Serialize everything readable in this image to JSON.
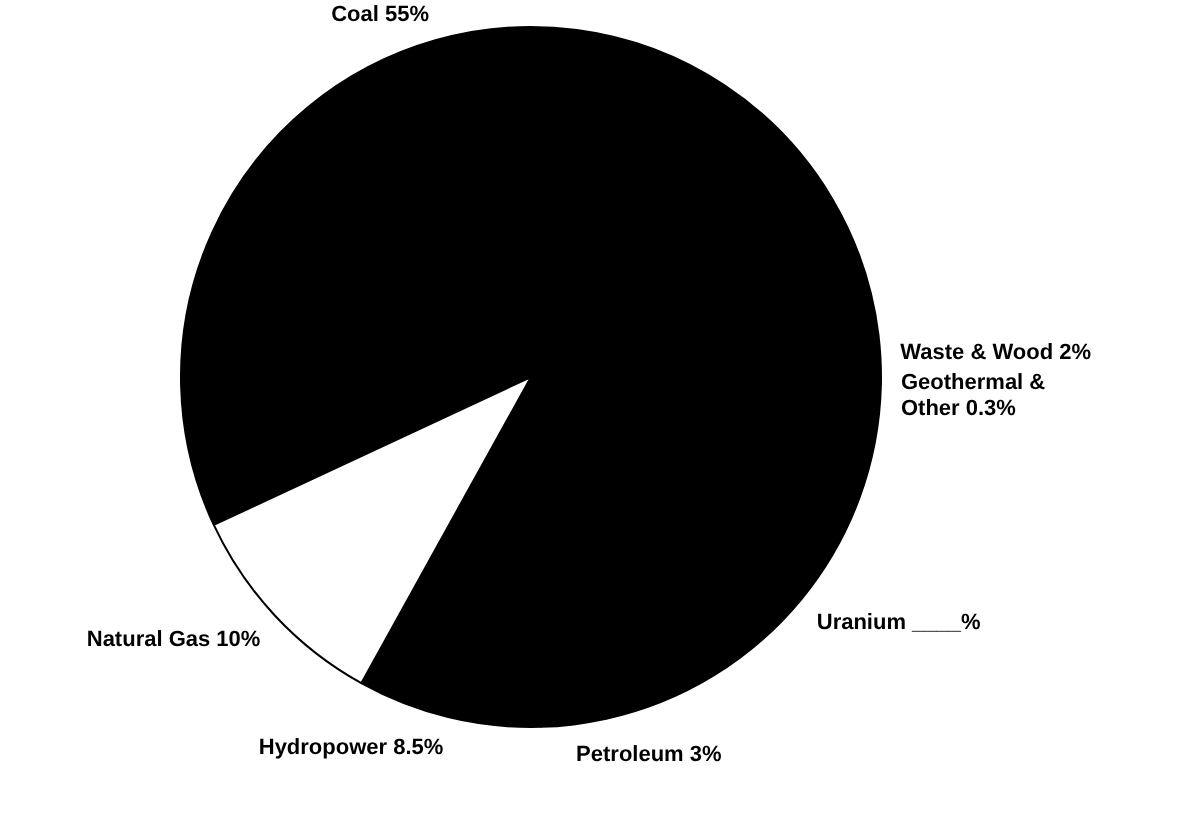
{
  "chart_data": {
    "type": "pie",
    "categories": [
      "Coal",
      "Waste & Wood",
      "Geothermal & Other",
      "Uranium",
      "Petroleum",
      "Hydropower",
      "Natural Gas"
    ],
    "values": [
      55,
      2,
      0.3,
      21.2,
      3,
      8.5,
      10
    ],
    "value_labels": [
      "55%",
      "2%",
      "0.3%",
      "____%",
      "3%",
      "8.5%",
      "10%"
    ],
    "colors": [
      "#000000",
      "#000000",
      "#000000",
      "#000000",
      "#000000",
      "#000000",
      "#ffffff"
    ],
    "legend": false
  }
}
